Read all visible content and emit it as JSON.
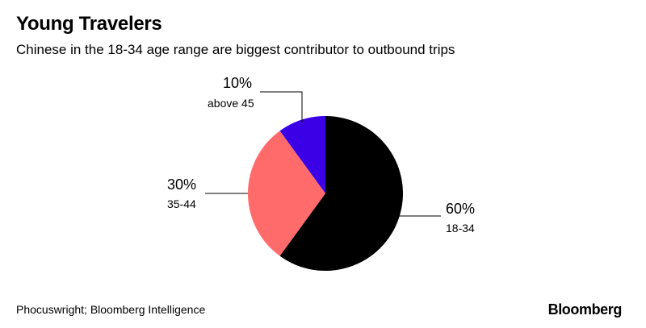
{
  "header": {
    "title": "Young Travelers",
    "subtitle": "Chinese in the 18-34 age range are biggest contributor to outbound trips"
  },
  "footer": {
    "source": "Phocuswright; Bloomberg Intelligence",
    "brand": "Bloomberg"
  },
  "chart_data": {
    "type": "pie",
    "title": "Young Travelers",
    "subtitle": "Chinese in the 18-34 age range are biggest contributor to outbound trips",
    "slices": [
      {
        "label": "18-34",
        "value": 60,
        "value_label": "60%",
        "color": "#000000"
      },
      {
        "label": "35-44",
        "value": 30,
        "value_label": "30%",
        "color": "#ff6b6b"
      },
      {
        "label": "above 45",
        "value": 10,
        "value_label": "10%",
        "color": "#3b00e6"
      }
    ],
    "start": "12 o'clock",
    "direction": "clockwise"
  }
}
